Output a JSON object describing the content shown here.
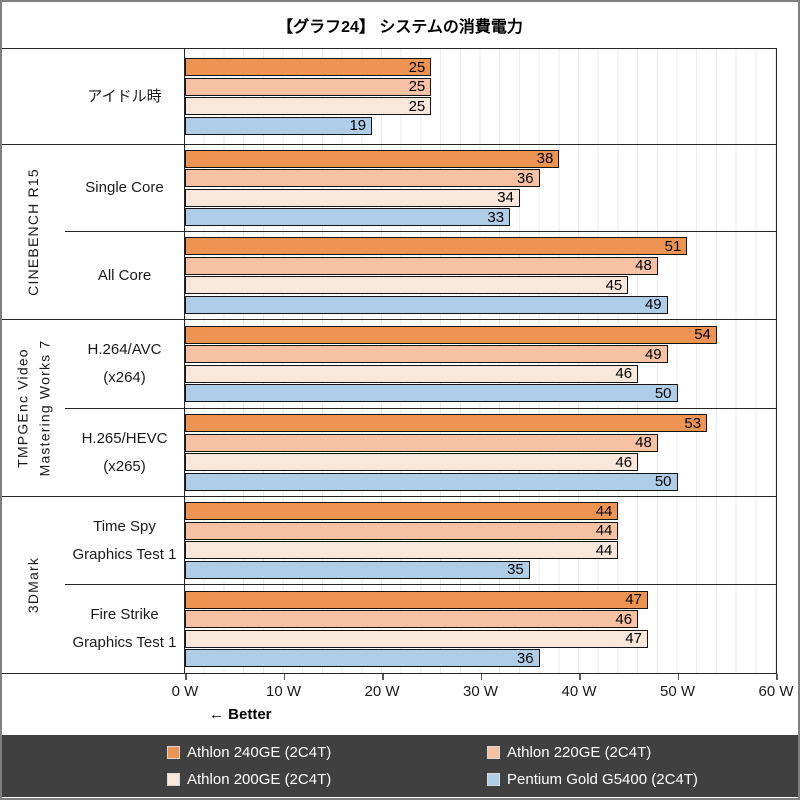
{
  "title": "【グラフ24】 システムの消費電力",
  "legend": {
    "items": [
      {
        "label": "Athlon 240GE (2C4T)",
        "color": "#EE9452"
      },
      {
        "label": "Athlon 220GE (2C4T)",
        "color": "#F6C2A3"
      },
      {
        "label": "Athlon 200GE (2C4T)",
        "color": "#FAE7DB"
      },
      {
        "label": "Pentium Gold G5400 (2C4T)",
        "color": "#AFCDE7"
      }
    ]
  },
  "chart_data": {
    "type": "bar",
    "orientation": "horizontal",
    "title": "【グラフ24】 システムの消費電力",
    "value_unit": "W",
    "xlim": [
      0,
      60
    ],
    "x_ticks": [
      "0 W",
      "10 W",
      "20 W",
      "30 W",
      "40 W",
      "50 W",
      "60 W"
    ],
    "minor_grid_step_w": 2,
    "annotation": "← Better",
    "legend_position": "bottom",
    "series": [
      {
        "name": "Athlon 240GE (2C4T)",
        "color": "#EE9452",
        "values": [
          25,
          38,
          51,
          54,
          53,
          44,
          47
        ]
      },
      {
        "name": "Athlon 220GE (2C4T)",
        "color": "#F6C2A3",
        "values": [
          25,
          36,
          48,
          49,
          48,
          44,
          46
        ]
      },
      {
        "name": "Athlon 200GE (2C4T)",
        "color": "#FAE7DB",
        "values": [
          25,
          34,
          45,
          46,
          46,
          44,
          47
        ]
      },
      {
        "name": "Pentium Gold G5400 (2C4T)",
        "color": "#AFCDE7",
        "values": [
          19,
          33,
          49,
          50,
          50,
          35,
          36
        ]
      }
    ],
    "rows": [
      {
        "section_lines": [],
        "section_span": 1,
        "label_lines": [
          "アイドル時"
        ],
        "separator": "none"
      },
      {
        "section_lines": [
          "CINEBENCH R15"
        ],
        "section_span": 2,
        "label_lines": [
          "Single Core"
        ],
        "separator": "full"
      },
      {
        "label_lines": [
          "All Core"
        ],
        "separator": "partial"
      },
      {
        "section_lines": [
          "TMPGEnc Video",
          "Mastering Works 7"
        ],
        "section_span": 2,
        "label_lines": [
          "H.264/AVC",
          "(x264)"
        ],
        "separator": "full"
      },
      {
        "label_lines": [
          "H.265/HEVC",
          "(x265)"
        ],
        "separator": "partial"
      },
      {
        "section_lines": [
          "3DMark"
        ],
        "section_span": 2,
        "label_lines": [
          "Time Spy",
          "Graphics Test 1"
        ],
        "separator": "full"
      },
      {
        "label_lines": [
          "Fire Strike",
          "Graphics Test 1"
        ],
        "separator": "partial"
      }
    ]
  }
}
